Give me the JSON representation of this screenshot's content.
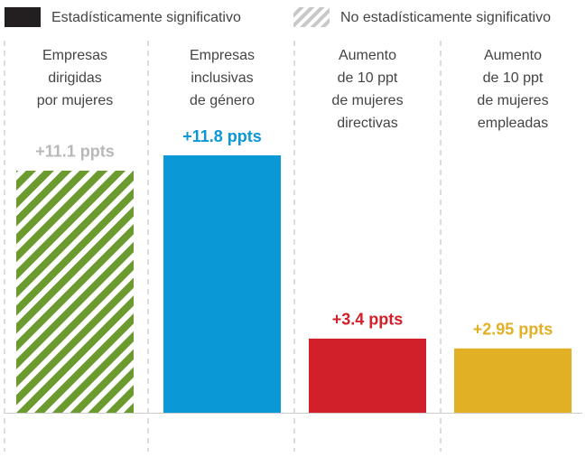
{
  "chart_data": {
    "type": "bar",
    "legend": [
      {
        "name": "Estadísticamente significativo",
        "color": "#231f20",
        "hatched": false
      },
      {
        "name": "No estadísticamente significativo",
        "color": "#c8c8c8",
        "hatched": true
      }
    ],
    "categories": [
      [
        "Empresas",
        "dirigidas",
        "por mujeres"
      ],
      [
        "Empresas",
        "inclusivas",
        "de género"
      ],
      [
        "Aumento",
        "de 10 ppt",
        "de mujeres",
        "directivas"
      ],
      [
        "Aumento",
        "de 10 ppt",
        "de mujeres",
        "empleadas"
      ]
    ],
    "values": [
      11.1,
      11.8,
      3.4,
      2.95
    ],
    "value_labels": [
      "+11.1 ppts",
      "+11.8 ppts",
      "+3.4 ppts",
      "+2.95 ppts"
    ],
    "colors": [
      "#6b9a2f",
      "#0a98d6",
      "#d2202a",
      "#e1b024"
    ],
    "significant": [
      false,
      true,
      true,
      true
    ],
    "insignificant_label_color": "#b8b8b8"
  }
}
